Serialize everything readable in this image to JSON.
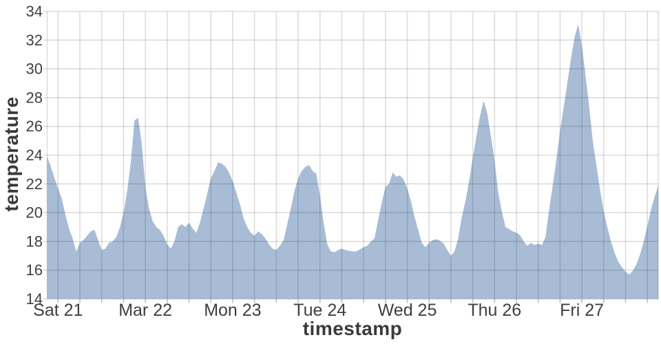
{
  "chart_data": {
    "type": "area",
    "title": "",
    "xlabel": "timestamp",
    "ylabel": "temperature",
    "ylim": [
      14,
      34
    ],
    "y_ticks": [
      14,
      16,
      18,
      20,
      22,
      24,
      26,
      28,
      30,
      32,
      34
    ],
    "x_tick_labels": [
      "Sat 21",
      "Mar 22",
      "Mon 23",
      "Tue 24",
      "Wed 25",
      "Thu 26",
      "Fri 27"
    ],
    "x_tick_indices": [
      3,
      27,
      51,
      75,
      99,
      123,
      147
    ],
    "minor_grid_step_hours": 6,
    "grid": true,
    "legend": "none",
    "series": [
      {
        "name": "temperature",
        "sampling": "hourly",
        "values": [
          23.9,
          23.2,
          22.4,
          21.7,
          21.0,
          19.9,
          18.9,
          18.2,
          17.3,
          17.9,
          18.1,
          18.4,
          18.7,
          18.8,
          18.1,
          17.4,
          17.5,
          17.9,
          18.0,
          18.3,
          19.0,
          20.0,
          21.5,
          23.5,
          26.4,
          26.6,
          24.8,
          21.8,
          20.3,
          19.4,
          19.0,
          18.8,
          18.4,
          17.8,
          17.5,
          18.0,
          19.0,
          19.2,
          19.0,
          19.3,
          18.9,
          18.6,
          19.3,
          20.3,
          21.3,
          22.4,
          22.9,
          23.5,
          23.4,
          23.2,
          22.8,
          22.2,
          21.4,
          20.6,
          19.6,
          19.0,
          18.6,
          18.4,
          18.7,
          18.5,
          18.2,
          17.8,
          17.5,
          17.4,
          17.7,
          18.1,
          19.2,
          20.3,
          21.5,
          22.4,
          22.9,
          23.2,
          23.3,
          22.9,
          22.7,
          21.2,
          19.3,
          17.8,
          17.3,
          17.25,
          17.4,
          17.5,
          17.4,
          17.35,
          17.3,
          17.3,
          17.45,
          17.6,
          17.7,
          18.0,
          18.2,
          19.5,
          20.7,
          21.8,
          22.0,
          22.8,
          22.5,
          22.6,
          22.3,
          21.7,
          20.8,
          19.7,
          18.8,
          17.9,
          17.6,
          17.9,
          18.1,
          18.15,
          18.05,
          17.85,
          17.4,
          17.0,
          17.3,
          18.2,
          19.7,
          20.8,
          22.2,
          23.8,
          25.3,
          26.7,
          27.8,
          26.9,
          25.3,
          23.6,
          21.4,
          20.1,
          19.0,
          18.85,
          18.7,
          18.6,
          18.45,
          18.0,
          17.7,
          17.9,
          17.75,
          17.85,
          17.75,
          18.3,
          20.2,
          21.9,
          23.7,
          25.7,
          27.3,
          29.0,
          30.7,
          32.2,
          33.1,
          31.6,
          29.6,
          27.4,
          25.0,
          23.3,
          21.6,
          20.1,
          19.0,
          18.0,
          17.2,
          16.6,
          16.2,
          15.9,
          15.7,
          15.95,
          16.4,
          17.1,
          18.0,
          19.1,
          20.2,
          21.1,
          21.9
        ]
      }
    ],
    "colors": {
      "area_fill": "#a8bcd6",
      "grid_line": "rgba(0,0,0,0.135)",
      "tick_mark": "#bdbdbd",
      "tick_text": "#3f3f3f",
      "axis_title_text": "#3a3a3a",
      "background": "#ffffff"
    }
  }
}
